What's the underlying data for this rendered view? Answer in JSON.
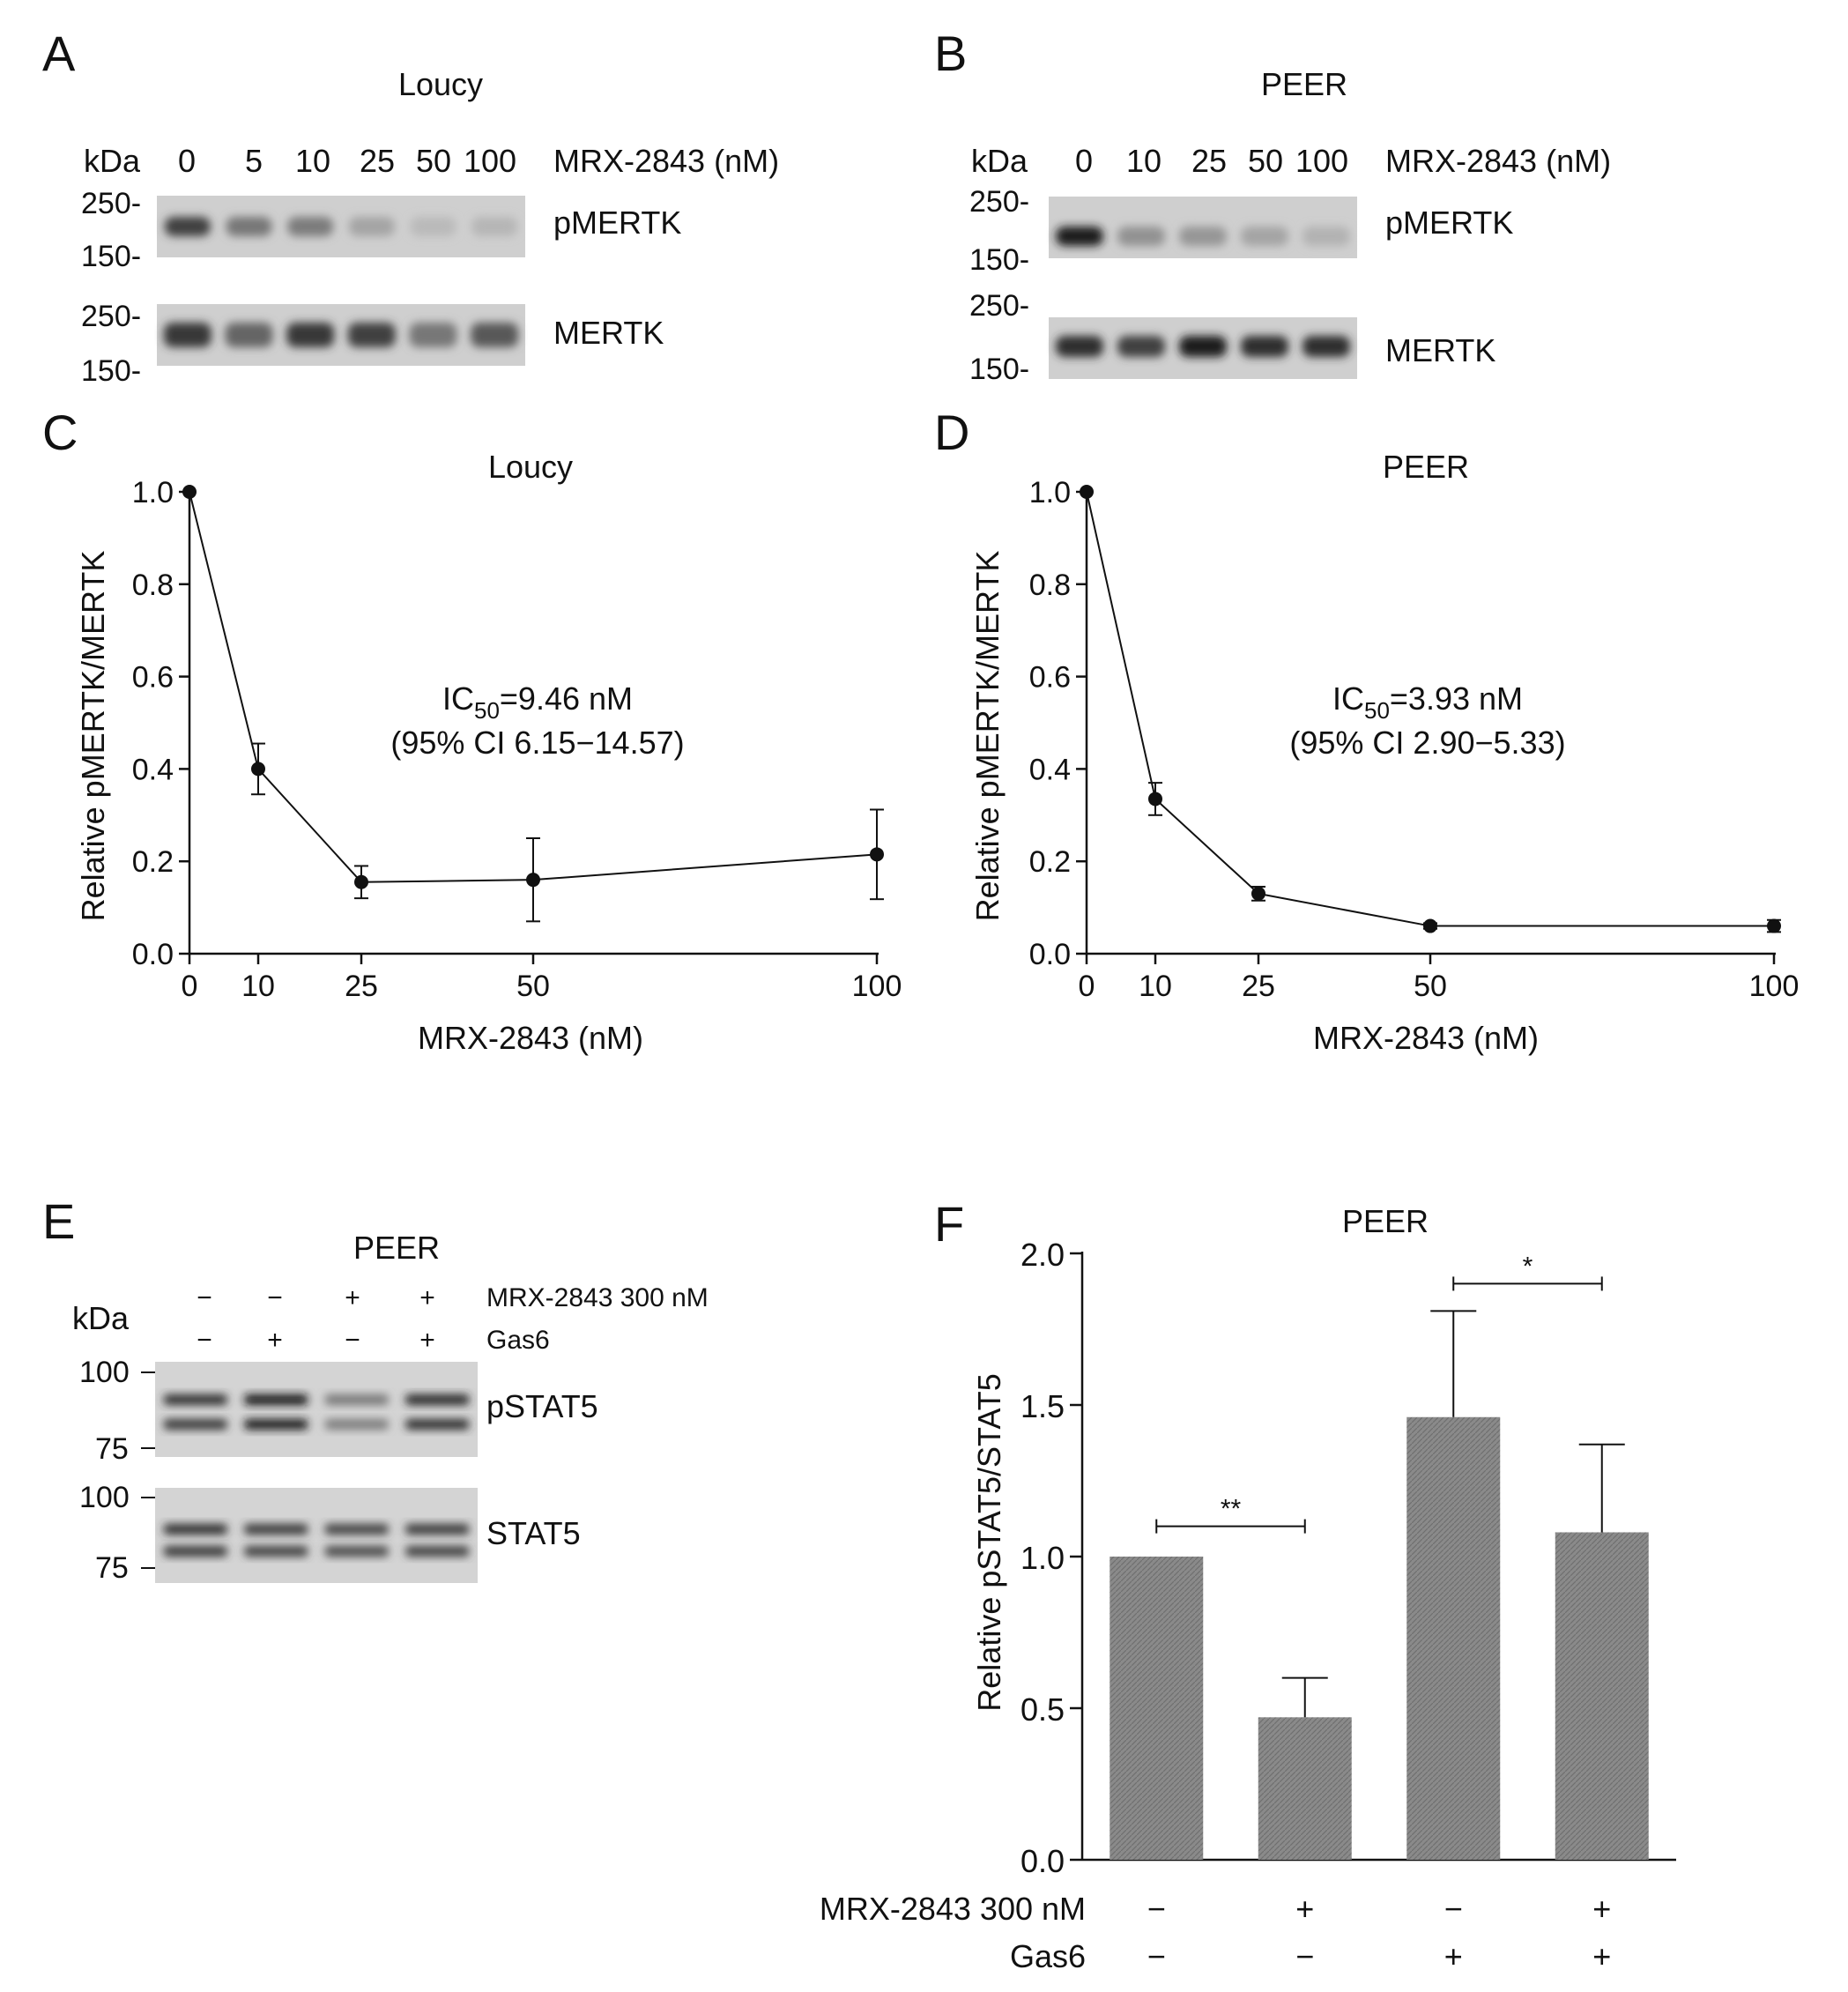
{
  "panelA": {
    "letter": "A",
    "title": "Loucy",
    "kda": "kDa",
    "lanes": [
      "0",
      "5",
      "10",
      "25",
      "50",
      "100"
    ],
    "drug_label": "MRX-2843 (nM)",
    "blots": [
      {
        "label": "pMERTK",
        "mw_top": "250-",
        "mw_bottom": "150-",
        "intensity": [
          0.75,
          0.45,
          0.42,
          0.2,
          0.08,
          0.1
        ]
      },
      {
        "label": "MERTK",
        "mw_top": "250-",
        "mw_bottom": "150-",
        "intensity": [
          0.8,
          0.55,
          0.8,
          0.75,
          0.45,
          0.62
        ]
      }
    ]
  },
  "panelB": {
    "letter": "B",
    "title": "PEER",
    "kda": "kDa",
    "lanes": [
      "0",
      "10",
      "25",
      "50",
      "100"
    ],
    "drug_label": "MRX-2843 (nM)",
    "blots": [
      {
        "label": "pMERTK",
        "mw_top": "250-",
        "mw_bottom": "150-",
        "intensity": [
          0.95,
          0.3,
          0.28,
          0.2,
          0.12
        ]
      },
      {
        "label": "MERTK",
        "mw_top": "250-",
        "mw_bottom": "150-",
        "intensity": [
          0.85,
          0.75,
          0.95,
          0.85,
          0.85
        ]
      }
    ]
  },
  "panelC": {
    "letter": "C",
    "ic50_name": "IC",
    "ic50_sub": "50",
    "ic50_value": "=9.46 nM",
    "ci": "(95% CI 6.15−14.57)",
    "chart_data": {
      "type": "line",
      "title": "Loucy",
      "xlabel": "MRX-2843 (nM)",
      "ylabel": "Relative pMERTK/MERTK",
      "x": [
        0,
        10,
        25,
        50,
        100
      ],
      "y": [
        1.0,
        0.4,
        0.155,
        0.16,
        0.215
      ],
      "err": [
        0,
        0.055,
        0.035,
        0.09,
        0.097
      ],
      "xticks": [
        0,
        10,
        25,
        50,
        100
      ],
      "yticks": [
        0.0,
        0.2,
        0.4,
        0.6,
        0.8,
        1.0
      ],
      "xlim": [
        0,
        100
      ],
      "ylim": [
        0,
        1.0
      ]
    }
  },
  "panelD": {
    "letter": "D",
    "ic50_name": "IC",
    "ic50_sub": "50",
    "ic50_value": "=3.93 nM",
    "ci": "(95% CI 2.90−5.33)",
    "chart_data": {
      "type": "line",
      "title": "PEER",
      "xlabel": "MRX-2843 (nM)",
      "ylabel": "Relative pMERTK/MERTK",
      "x": [
        0,
        10,
        25,
        50,
        100
      ],
      "y": [
        1.0,
        0.335,
        0.13,
        0.06,
        0.06
      ],
      "err": [
        0,
        0.035,
        0.015,
        0.006,
        0.013
      ],
      "xticks": [
        0,
        10,
        25,
        50,
        100
      ],
      "yticks": [
        0.0,
        0.2,
        0.4,
        0.6,
        0.8,
        1.0
      ],
      "xlim": [
        0,
        100
      ],
      "ylim": [
        0,
        1.0
      ]
    }
  },
  "panelE": {
    "letter": "E",
    "title": "PEER",
    "kda": "kDa",
    "row1_label": "MRX-2843 300 nM",
    "row1_signs": [
      "−",
      "−",
      "+",
      "+"
    ],
    "row2_label": "Gas6",
    "row2_signs": [
      "−",
      "+",
      "−",
      "+"
    ],
    "blots": [
      {
        "label": "pSTAT5",
        "mw_top": "100",
        "mw_bottom": "75",
        "intensity": [
          0.85,
          1.0,
          0.45,
          0.9
        ]
      },
      {
        "label": "STAT5",
        "mw_top": "100",
        "mw_bottom": "75",
        "intensity": [
          0.85,
          0.8,
          0.75,
          0.8
        ]
      }
    ]
  },
  "panelF": {
    "letter": "F",
    "row1_label": "MRX-2843 300 nM",
    "row1_signs": [
      "−",
      "+",
      "−",
      "+"
    ],
    "row2_label": "Gas6",
    "row2_signs": [
      "−",
      "−",
      "+",
      "+"
    ],
    "sig": [
      {
        "from": 0,
        "to": 1,
        "label": "**",
        "level": 1.1
      },
      {
        "from": 2,
        "to": 3,
        "label": "*",
        "level": 1.9
      }
    ],
    "chart_data": {
      "type": "bar",
      "title": "PEER",
      "ylabel": "Relative pSTAT5/STAT5",
      "xlabel": "",
      "categories": [
        "MRX-2843 − / Gas6 −",
        "MRX-2843 + / Gas6 −",
        "MRX-2843 − / Gas6 +",
        "MRX-2843 + / Gas6 +"
      ],
      "values": [
        1.0,
        0.47,
        1.46,
        1.08
      ],
      "err": [
        0,
        0.13,
        0.35,
        0.29
      ],
      "yticks": [
        0.0,
        0.5,
        1.0,
        1.5,
        2.0
      ],
      "ylim": [
        0,
        2.0
      ]
    }
  },
  "colors": {
    "bar_fill": "#8a8a8a",
    "blot_bg": "#cfcfcf",
    "ink": "#111111"
  }
}
